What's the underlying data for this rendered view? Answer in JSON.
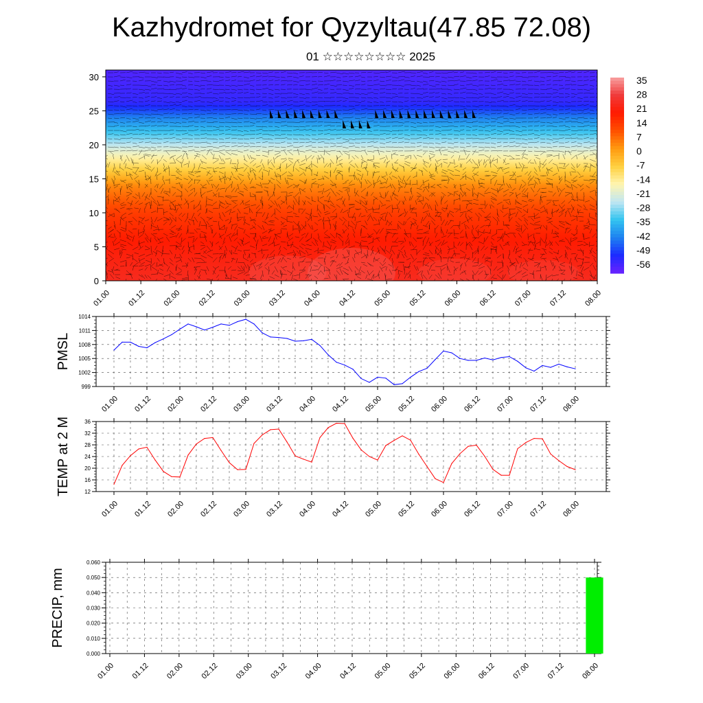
{
  "title": "Kazhydromet for Qyzyltau(47.85 72.08)",
  "subtitle": "01 ☆☆☆☆☆☆☆☆ 2025",
  "chart_data": [
    {
      "type": "heatmap",
      "name": "cross-section",
      "y_ticks": [
        "0",
        "5",
        "10",
        "15",
        "20",
        "25",
        "30"
      ],
      "ylim": [
        0,
        31
      ],
      "x_ticks": [
        "01.00",
        "01.12",
        "02.00",
        "02.12",
        "03.00",
        "03.12",
        "04.00",
        "04.12",
        "05.00",
        "05.12",
        "06.00",
        "06.12",
        "07.00",
        "07.12",
        "08.00"
      ],
      "colorbar_labels": [
        "35",
        "28",
        "21",
        "14",
        "7",
        "0",
        "-7",
        "-14",
        "-21",
        "-28",
        "-35",
        "-42",
        "-49",
        "-56"
      ],
      "colorbar_range": [
        -63,
        42
      ],
      "colors": [
        "#6a22ff",
        "#1c2bff",
        "#1e82f0",
        "#33c4f0",
        "#c0e6f2",
        "#fff5b0",
        "#ffd040",
        "#ff9a10",
        "#ff5000",
        "#ff1a00",
        "#f03a3a",
        "#f8a0a0"
      ],
      "profile_by_height": [
        {
          "h": 0,
          "t": 28
        },
        {
          "h": 5,
          "t": 24
        },
        {
          "h": 10,
          "t": 17
        },
        {
          "h": 14,
          "t": 6
        },
        {
          "h": 18,
          "t": -14
        },
        {
          "h": 21,
          "t": -30
        },
        {
          "h": 24,
          "t": -44
        },
        {
          "h": 26,
          "t": -56
        },
        {
          "h": 31,
          "t": -60
        }
      ]
    },
    {
      "type": "line",
      "name": "PMSL",
      "ylabel": "PMSL",
      "y_ticks": [
        "999",
        "1002",
        "1005",
        "1008",
        "1011",
        "1014"
      ],
      "ylim": [
        999,
        1014
      ],
      "color": "#0000ff",
      "x_ticks": [
        "01.00",
        "01.12",
        "02.00",
        "02.12",
        "03.00",
        "03.12",
        "04.00",
        "04.12",
        "05.00",
        "05.12",
        "06.00",
        "06.12",
        "07.00",
        "07.12",
        "08.00"
      ],
      "x": [
        0,
        3,
        6,
        9,
        12,
        15,
        18,
        21,
        24,
        27,
        30,
        33,
        36,
        39,
        42,
        45,
        48,
        51,
        54,
        57,
        60,
        63,
        66,
        69,
        72,
        75,
        78,
        81,
        84,
        87,
        90,
        93,
        96,
        99,
        102,
        105,
        108,
        111,
        114,
        117,
        120,
        123,
        126,
        129,
        132,
        135,
        138,
        141,
        144,
        147,
        150,
        153,
        156,
        159,
        162,
        165,
        168
      ],
      "values": [
        1006.8,
        1008.5,
        1008.5,
        1007.6,
        1007.3,
        1008.4,
        1009.2,
        1010.1,
        1011.3,
        1012.4,
        1011.8,
        1011.1,
        1011.7,
        1012.4,
        1012.1,
        1012.9,
        1013.4,
        1012.4,
        1010.5,
        1009.6,
        1009.5,
        1009.3,
        1008.7,
        1008.8,
        1009.1,
        1007.8,
        1005.8,
        1004.2,
        1003.6,
        1002.7,
        1000.7,
        999.9,
        1001.0,
        1000.8,
        999.4,
        999.6,
        1001.0,
        1002.2,
        1002.9,
        1004.8,
        1006.6,
        1006.2,
        1005.0,
        1004.6,
        1004.6,
        1005.1,
        1004.7,
        1005.2,
        1005.4,
        1004.4,
        1003.0,
        1002.3,
        1003.5,
        1003.1,
        1003.8,
        1003.2,
        1002.8
      ]
    },
    {
      "type": "line",
      "name": "TEMP at 2 M",
      "ylabel": "TEMP at 2 M",
      "y_ticks": [
        "12",
        "16",
        "20",
        "24",
        "28",
        "32",
        "36"
      ],
      "ylim": [
        12,
        36
      ],
      "color": "#ff0000",
      "x_ticks": [
        "01.00",
        "01.12",
        "02.00",
        "02.12",
        "03.00",
        "03.12",
        "04.00",
        "04.12",
        "05.00",
        "05.12",
        "06.00",
        "06.12",
        "07.00",
        "07.12",
        "08.00"
      ],
      "x": [
        0,
        3,
        6,
        9,
        12,
        15,
        18,
        21,
        24,
        27,
        30,
        33,
        36,
        39,
        42,
        45,
        48,
        51,
        54,
        57,
        60,
        63,
        66,
        69,
        72,
        75,
        78,
        81,
        84,
        87,
        90,
        93,
        96,
        99,
        102,
        105,
        108,
        111,
        114,
        117,
        120,
        123,
        126,
        129,
        132,
        135,
        138,
        141,
        144,
        147,
        150,
        153,
        156,
        159,
        162,
        165,
        168
      ],
      "values": [
        14.5,
        21.0,
        24.3,
        26.6,
        27.2,
        22.8,
        18.9,
        17.1,
        17.0,
        24.5,
        28.3,
        30.2,
        30.5,
        26.1,
        21.9,
        19.5,
        19.6,
        28.5,
        31.4,
        33.2,
        33.4,
        29.0,
        24.2,
        23.1,
        22.1,
        30.5,
        33.9,
        35.4,
        35.3,
        30.3,
        26.3,
        24.0,
        22.8,
        27.8,
        29.5,
        31.1,
        29.6,
        24.8,
        20.6,
        16.4,
        15.1,
        21.6,
        25.0,
        27.5,
        27.9,
        24.1,
        19.6,
        17.6,
        17.6,
        26.7,
        28.8,
        30.2,
        30.1,
        24.9,
        22.6,
        20.6,
        19.5
      ]
    },
    {
      "type": "bar",
      "name": "PRECIP, mm",
      "ylabel": "PRECIP, mm",
      "y_ticks": [
        "0.000",
        "0.010",
        "0.020",
        "0.030",
        "0.040",
        "0.050",
        "0.060"
      ],
      "ylim": [
        0,
        0.06
      ],
      "color": "#00ee00",
      "x_ticks": [
        "01.00",
        "01.12",
        "02.00",
        "02.12",
        "03.00",
        "03.12",
        "04.00",
        "04.12",
        "05.00",
        "05.12",
        "06.00",
        "06.12",
        "07.00",
        "07.12",
        "08.00"
      ],
      "bars": [
        {
          "x_start": 165,
          "x_end": 171,
          "value": 0.05
        }
      ]
    }
  ]
}
